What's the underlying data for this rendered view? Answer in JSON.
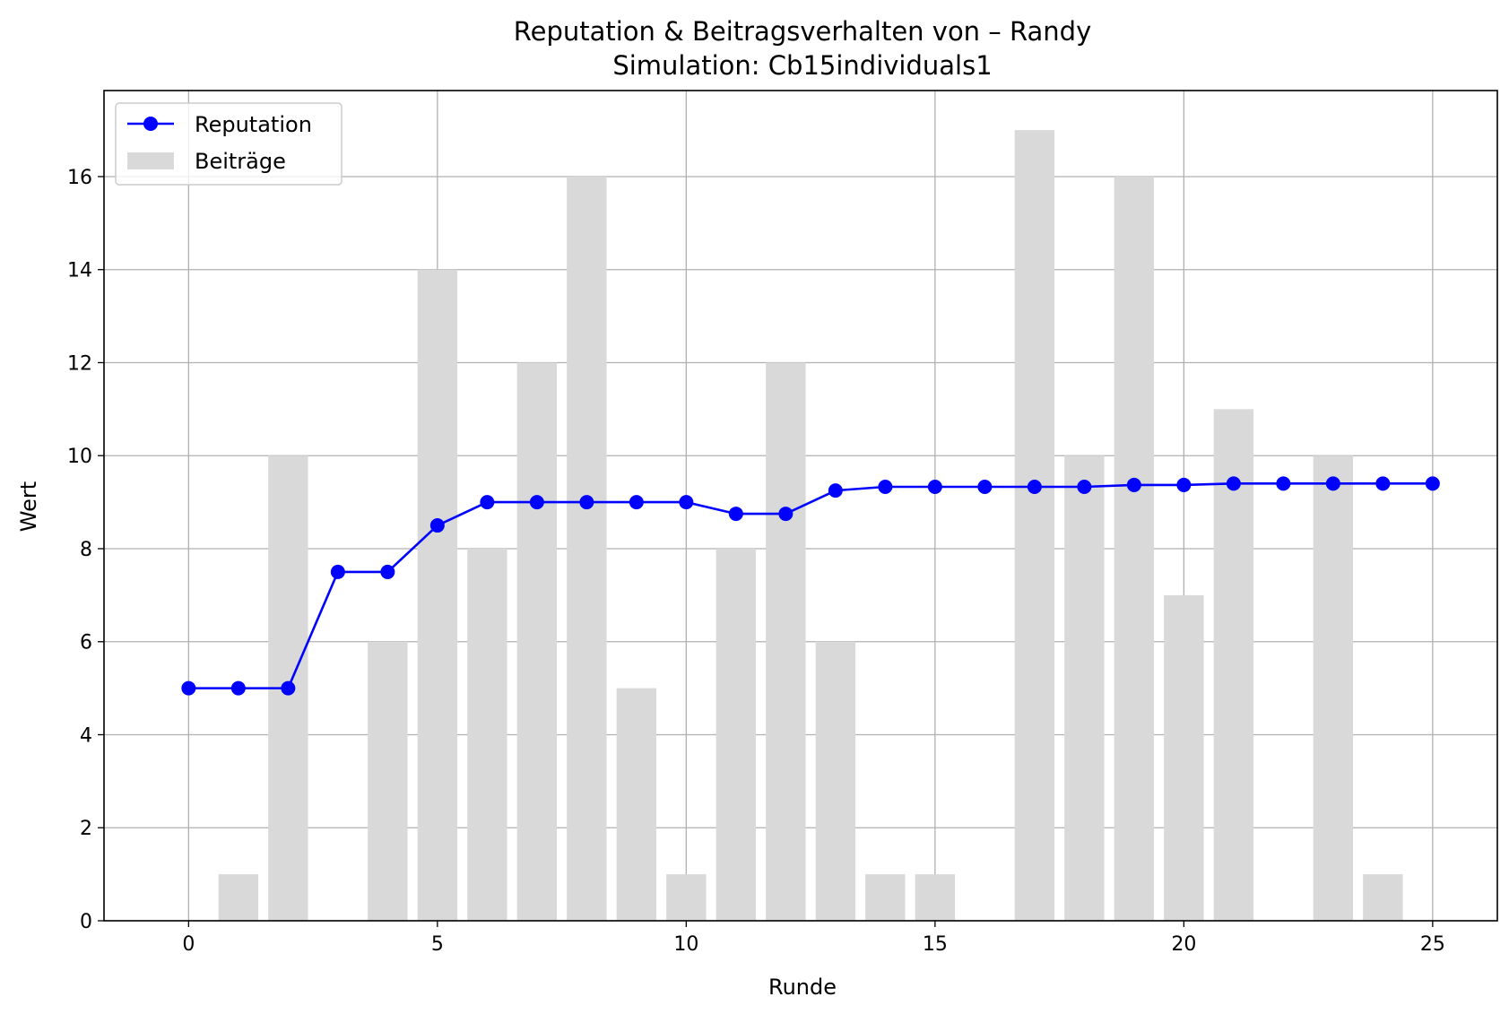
{
  "chart_data": {
    "type": "bar+line",
    "title": "Reputation & Beitragsverhalten von – Randy",
    "subtitle": "Simulation: Cb15individuals1",
    "xlabel": "Runde",
    "ylabel": "Wert",
    "xlim": [
      -1.7,
      26.3
    ],
    "ylim": [
      0,
      17.85
    ],
    "xticks": [
      0,
      5,
      10,
      15,
      20,
      25
    ],
    "yticks": [
      0,
      2,
      4,
      6,
      8,
      10,
      12,
      14,
      16
    ],
    "grid": true,
    "legend_position": "top-left",
    "x": [
      0,
      1,
      2,
      3,
      4,
      5,
      6,
      7,
      8,
      9,
      10,
      11,
      12,
      13,
      14,
      15,
      16,
      17,
      18,
      19,
      20,
      21,
      22,
      23,
      24,
      25
    ],
    "series": [
      {
        "name": "Reputation",
        "kind": "line",
        "color": "#0000ff",
        "values": [
          5.0,
          5.0,
          5.0,
          7.5,
          7.5,
          8.5,
          9.0,
          9.0,
          9.0,
          9.0,
          9.0,
          8.75,
          8.75,
          9.25,
          9.33,
          9.33,
          9.33,
          9.33,
          9.33,
          9.37,
          9.37,
          9.4,
          9.4,
          9.4,
          9.4,
          9.4
        ]
      },
      {
        "name": "Beiträge",
        "kind": "bar",
        "color": "#d9d9d9",
        "values": [
          0,
          1,
          10,
          0,
          6,
          14,
          8,
          12,
          16,
          5,
          1,
          8,
          12,
          6,
          1,
          1,
          0,
          17,
          10,
          16,
          7,
          11,
          0,
          10,
          1,
          0
        ]
      }
    ]
  }
}
